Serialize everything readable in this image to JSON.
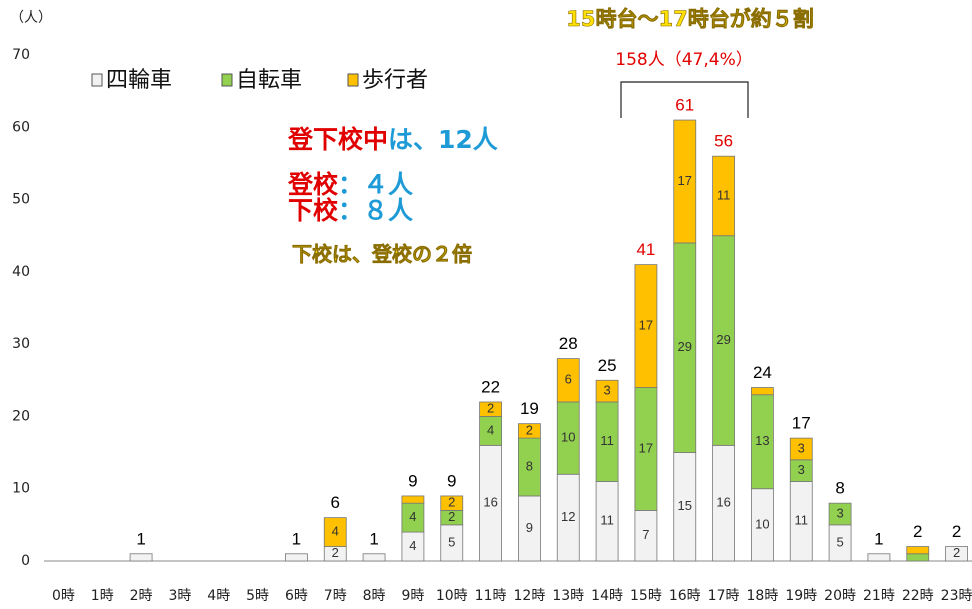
{
  "chart_data": {
    "type": "stacked_bar",
    "y_label": "（人）",
    "headline": "15時台～17時台が約５割",
    "bracket_label": "158人（47,4%）",
    "categories": [
      "0時",
      "1時",
      "2時",
      "3時",
      "4時",
      "5時",
      "6時",
      "7時",
      "8時",
      "9時",
      "10時",
      "11時",
      "12時",
      "13時",
      "14時",
      "15時",
      "16時",
      "17時",
      "18時",
      "19時",
      "20時",
      "21時",
      "22時",
      "23時"
    ],
    "series": [
      {
        "name": "四輪車",
        "color": "#f2f2f2",
        "values": [
          0,
          0,
          1,
          0,
          0,
          0,
          1,
          2,
          1,
          4,
          5,
          16,
          9,
          12,
          11,
          7,
          15,
          16,
          10,
          11,
          5,
          1,
          0,
          2
        ]
      },
      {
        "name": "自転車",
        "color": "#92d050",
        "values": [
          0,
          0,
          0,
          0,
          0,
          0,
          0,
          0,
          0,
          4,
          2,
          4,
          8,
          10,
          11,
          17,
          29,
          29,
          13,
          3,
          3,
          0,
          1,
          0
        ]
      },
      {
        "name": "歩行者",
        "color": "#ffc000",
        "values": [
          0,
          0,
          0,
          0,
          0,
          0,
          0,
          4,
          0,
          1,
          2,
          2,
          2,
          6,
          3,
          17,
          17,
          11,
          1,
          3,
          0,
          0,
          1,
          0
        ]
      }
    ],
    "totals": [
      null,
      null,
      1,
      null,
      null,
      null,
      1,
      6,
      1,
      9,
      9,
      22,
      19,
      28,
      25,
      41,
      61,
      56,
      24,
      17,
      8,
      1,
      2,
      2
    ],
    "total_colors": [
      "#000",
      "#000",
      "#000",
      "#000",
      "#000",
      "#000",
      "#000",
      "#000",
      "#000",
      "#000",
      "#000",
      "#000",
      "#000",
      "#000",
      "#000",
      "#e00000",
      "#e00000",
      "#e00000",
      "#000",
      "#000",
      "#000",
      "#000",
      "#000",
      "#000"
    ],
    "ylim": [
      0,
      70
    ],
    "yticks": [
      0,
      10,
      20,
      30,
      40,
      50,
      60,
      70
    ],
    "grid": false,
    "notes": [
      {
        "parts": [
          {
            "text": "登下校中",
            "color": "#e00000"
          },
          {
            "text": "は、12人",
            "color": "#1e9bd7"
          }
        ]
      },
      {
        "parts": [
          {
            "text": "登校",
            "color": "#e00000"
          },
          {
            "text": "：４人",
            "color": "#1e9bd7"
          }
        ]
      },
      {
        "parts": [
          {
            "text": "下校",
            "color": "#e00000"
          },
          {
            "text": "：８人",
            "color": "#1e9bd7"
          }
        ]
      },
      {
        "parts": [
          {
            "text": "下校は、登校の２倍",
            "color": "#ffe000"
          }
        ]
      }
    ]
  }
}
